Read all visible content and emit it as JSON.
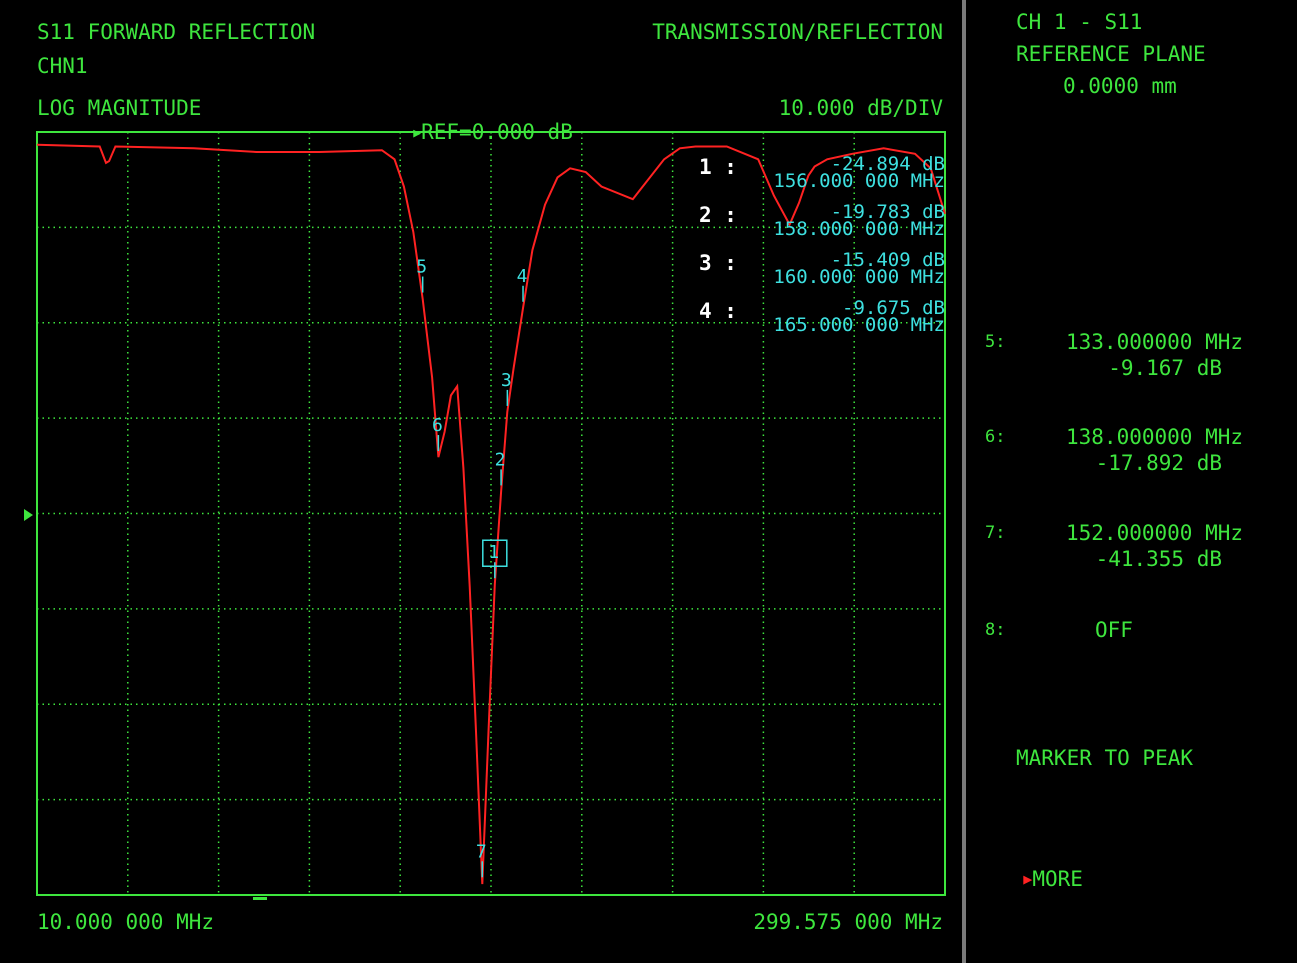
{
  "header": {
    "title": "S11 FORWARD REFLECTION",
    "mode": "TRANSMISSION/REFLECTION",
    "channel": "CHN1",
    "format": "LOG MAGNITUDE",
    "ref": "REF=0.000 dB",
    "scale": "10.000 dB/DIV"
  },
  "footer": {
    "start_freq": "10.000 000 MHz",
    "stop_freq": "299.575 000 MHz"
  },
  "side_panel": {
    "channel_param": "CH 1 - S11",
    "ref_plane_label": "REFERENCE PLANE",
    "ref_plane_value": "0.0000 mm",
    "markers": [
      {
        "idx": "5:",
        "freq": "133.000000 MHz",
        "value": "-9.167 dB"
      },
      {
        "idx": "6:",
        "freq": "138.000000 MHz",
        "value": "-17.892 dB"
      },
      {
        "idx": "7:",
        "freq": "152.000000 MHz",
        "value": "-41.355 dB"
      },
      {
        "idx": "8:",
        "freq": "OFF",
        "value": ""
      }
    ],
    "menu_marker_to_peak": "MARKER TO PEAK",
    "menu_more": "MORE"
  },
  "colors": {
    "text": "#3ee63e",
    "marker_text": "#3ee0e0",
    "trace": "#ff2222",
    "grid": "#3ee63e",
    "divider": "#7a7a7a"
  },
  "chart_data": {
    "type": "line",
    "title": "S11 FORWARD REFLECTION",
    "xlabel": "",
    "ylabel": "",
    "xlim": [
      10.0,
      299.575
    ],
    "ylim": [
      -42.0,
      0.0
    ],
    "grid": true,
    "legend": "none",
    "x_start_label": "10.000 000 MHz",
    "x_stop_label": "299.575 000 MHz",
    "marker_readout": [
      {
        "num": "1",
        "value": "-24.894 dB",
        "freq": "156.000 000 MHz"
      },
      {
        "num": "2",
        "value": "-19.783 dB",
        "freq": "158.000 000 MHz"
      },
      {
        "num": "3",
        "value": "-15.409 dB",
        "freq": "160.000 000 MHz"
      },
      {
        "num": "4",
        "value": "-9.675 dB",
        "freq": "165.000 000 MHz"
      }
    ],
    "markers": [
      {
        "label": "1",
        "x": 156.0,
        "y": -24.894,
        "active": true
      },
      {
        "label": "2",
        "x": 158.0,
        "y": -19.783
      },
      {
        "label": "3",
        "x": 160.0,
        "y": -15.409
      },
      {
        "label": "4",
        "x": 165.0,
        "y": -9.675
      },
      {
        "label": "5",
        "x": 133.0,
        "y": -9.167
      },
      {
        "label": "6",
        "x": 138.0,
        "y": -17.892
      },
      {
        "label": "7",
        "x": 152.0,
        "y": -41.355
      }
    ],
    "series": [
      {
        "x": [
          10,
          30,
          32,
          33,
          35,
          60,
          80,
          100,
          120,
          124,
          127,
          130,
          133,
          136,
          138,
          140,
          142,
          144,
          146,
          148,
          150,
          152,
          154,
          156,
          158,
          160,
          162,
          165,
          168,
          172,
          176,
          180,
          185,
          190,
          200,
          210,
          215,
          220,
          230,
          240,
          245,
          250,
          253,
          256,
          258,
          262,
          270,
          280,
          290,
          295,
          299.575
        ],
        "y": [
          -0.7,
          -0.8,
          -1.7,
          -1.6,
          -0.8,
          -0.9,
          -1.1,
          -1.1,
          -1.0,
          -1.5,
          -3.0,
          -5.5,
          -9.2,
          -13.5,
          -17.9,
          -16.5,
          -14.5,
          -14.0,
          -18.5,
          -25.0,
          -33.0,
          -41.4,
          -33.0,
          -24.9,
          -19.8,
          -15.4,
          -13.0,
          -9.7,
          -6.5,
          -4.0,
          -2.5,
          -2.0,
          -2.2,
          -3.0,
          -3.7,
          -1.5,
          -0.9,
          -0.8,
          -0.8,
          -1.5,
          -3.5,
          -5.1,
          -3.9,
          -2.4,
          -1.9,
          -1.5,
          -1.2,
          -0.9,
          -1.2,
          -2.0,
          -4.5
        ]
      }
    ]
  }
}
